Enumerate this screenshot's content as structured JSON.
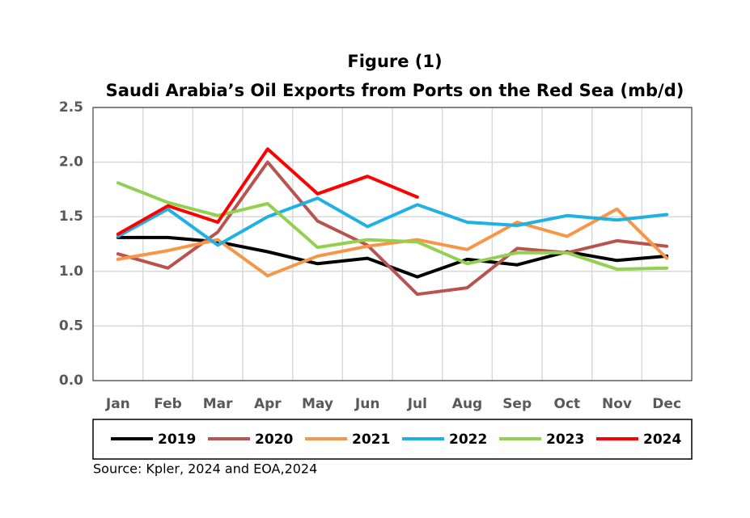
{
  "chart_data": {
    "type": "line",
    "title": "Figure (1)",
    "subtitle": "Saudi Arabia’s Oil Exports from Ports on the Red Sea (mb/d)",
    "source": "Source: Kpler, 2024 and EOA,2024",
    "categories": [
      "Jan",
      "Feb",
      "Mar",
      "Apr",
      "May",
      "Jun",
      "Jul",
      "Aug",
      "Sep",
      "Oct",
      "Nov",
      "Dec"
    ],
    "series": [
      {
        "name": "2019",
        "color": "#000000",
        "values": [
          1.31,
          1.31,
          1.27,
          1.18,
          1.07,
          1.12,
          0.95,
          1.11,
          1.06,
          1.18,
          1.1,
          1.14
        ]
      },
      {
        "name": "2020",
        "color": "#b85450",
        "values": [
          1.16,
          1.03,
          1.36,
          2.0,
          1.46,
          1.24,
          0.79,
          0.85,
          1.21,
          1.17,
          1.28,
          1.23
        ]
      },
      {
        "name": "2021",
        "color": "#f79646",
        "values": [
          1.11,
          1.19,
          1.29,
          0.96,
          1.14,
          1.23,
          1.29,
          1.2,
          1.45,
          1.32,
          1.57,
          1.12
        ]
      },
      {
        "name": "2022",
        "color": "#1fb0e6",
        "values": [
          1.32,
          1.57,
          1.24,
          1.5,
          1.67,
          1.41,
          1.61,
          1.45,
          1.42,
          1.51,
          1.47,
          1.52
        ]
      },
      {
        "name": "2023",
        "color": "#92d050",
        "values": [
          1.81,
          1.63,
          1.51,
          1.62,
          1.22,
          1.29,
          1.27,
          1.07,
          1.17,
          1.17,
          1.02,
          1.03
        ]
      },
      {
        "name": "2024",
        "color": "#ff0000",
        "values": [
          1.34,
          1.6,
          1.45,
          2.12,
          1.71,
          1.87,
          1.68,
          null,
          null,
          null,
          null,
          null
        ]
      }
    ],
    "ylim": [
      0,
      2.5
    ],
    "yticks": [
      {
        "value": 0,
        "label": "0.0"
      },
      0.5,
      {
        "value": 1,
        "label": "1.0"
      },
      1.5,
      {
        "value": 2,
        "label": "2.0"
      },
      2.5
    ],
    "grid": true,
    "legend": "bottom"
  }
}
